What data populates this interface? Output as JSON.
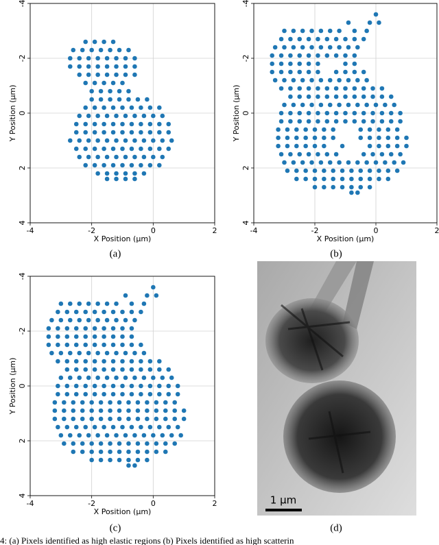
{
  "chart_data": [
    {
      "type": "scatter",
      "label": "(a)",
      "x_label": "X Position (µm)",
      "y_label": "Y Position (µm)",
      "xlim": [
        -4,
        2
      ],
      "ylim": [
        4,
        -4
      ],
      "xticks": [
        -4,
        -2,
        0,
        2
      ],
      "yticks": [
        -4,
        -2,
        0,
        2,
        4
      ],
      "grid": true,
      "color": "#1f77b4",
      "x": [
        -2.2,
        -1.9,
        -1.6,
        -1.3,
        -2.6,
        -2.3,
        -2.0,
        -1.7,
        -1.4,
        -1.1,
        -0.8,
        -2.7,
        -2.4,
        -2.1,
        -1.8,
        -1.5,
        -1.2,
        -0.9,
        -0.6,
        -2.7,
        -2.4,
        -2.1,
        -1.8,
        -1.5,
        -1.2,
        -0.9,
        -0.6,
        -2.4,
        -2.1,
        -1.8,
        -1.5,
        -1.2,
        -0.9,
        -0.6,
        -2.2,
        -1.9,
        -1.6,
        -1.3,
        -1.0,
        -2.0,
        -1.7,
        -1.4,
        -1.1,
        -0.8,
        -2.0,
        -1.7,
        -1.4,
        -1.1,
        -0.8,
        -0.5,
        -0.2,
        -2.2,
        -1.9,
        -1.6,
        -1.3,
        -1.0,
        -0.7,
        -0.4,
        -0.1,
        0.2,
        -2.4,
        -2.1,
        -1.8,
        -1.5,
        -1.2,
        -0.9,
        -0.6,
        -0.3,
        0,
        0.3,
        -2.5,
        -2.2,
        -1.9,
        -1.6,
        -1.3,
        -1.0,
        -0.7,
        -0.4,
        -0.1,
        0.2,
        0.5,
        -2.5,
        -2.2,
        -1.9,
        -1.6,
        -1.3,
        -1.0,
        -0.7,
        -0.4,
        -0.1,
        0.2,
        0.5,
        -2.7,
        -2.4,
        -2.1,
        -1.8,
        -1.5,
        -1.2,
        -0.9,
        -0.6,
        -0.3,
        0,
        0.3,
        0.6,
        -2.5,
        -2.2,
        -1.9,
        -1.6,
        -1.3,
        -1.0,
        -0.7,
        -0.4,
        -0.1,
        0.2,
        0.5,
        -2.4,
        -2.1,
        -1.8,
        -1.5,
        -1.2,
        -0.9,
        -0.6,
        -0.3,
        0,
        0.3,
        -2.2,
        -1.9,
        -1.6,
        -1.3,
        -1.0,
        -0.7,
        -0.4,
        -0.1,
        0.2,
        -1.8,
        -1.5,
        -1.2,
        -0.9,
        -0.6,
        -0.3,
        -1.5,
        -1.2,
        -0.9,
        -0.6
      ],
      "values": [
        -2.6,
        -2.6,
        -2.6,
        -2.6,
        -2.3,
        -2.3,
        -2.3,
        -2.3,
        -2.3,
        -2.3,
        -2.3,
        -2.0,
        -2.0,
        -2.0,
        -2.0,
        -2.0,
        -2.0,
        -2.0,
        -2.0,
        -1.7,
        -1.7,
        -1.7,
        -1.7,
        -1.7,
        -1.7,
        -1.7,
        -1.7,
        -1.4,
        -1.4,
        -1.4,
        -1.4,
        -1.4,
        -1.4,
        -1.4,
        -1.1,
        -1.1,
        -1.1,
        -1.1,
        -1.1,
        -0.8,
        -0.8,
        -0.8,
        -0.8,
        -0.8,
        -0.5,
        -0.5,
        -0.5,
        -0.5,
        -0.5,
        -0.5,
        -0.5,
        -0.2,
        -0.2,
        -0.2,
        -0.2,
        -0.2,
        -0.2,
        -0.2,
        -0.2,
        -0.2,
        0.1,
        0.1,
        0.1,
        0.1,
        0.1,
        0.1,
        0.1,
        0.1,
        0.1,
        0.1,
        0.4,
        0.4,
        0.4,
        0.4,
        0.4,
        0.4,
        0.4,
        0.4,
        0.4,
        0.4,
        0.4,
        0.7,
        0.7,
        0.7,
        0.7,
        0.7,
        0.7,
        0.7,
        0.7,
        0.7,
        0.7,
        0.7,
        1.0,
        1.0,
        1.0,
        1.0,
        1.0,
        1.0,
        1.0,
        1.0,
        1.0,
        1.0,
        1.0,
        1.0,
        1.3,
        1.3,
        1.3,
        1.3,
        1.3,
        1.3,
        1.3,
        1.3,
        1.3,
        1.3,
        1.3,
        1.6,
        1.6,
        1.6,
        1.6,
        1.6,
        1.6,
        1.6,
        1.6,
        1.6,
        1.6,
        1.9,
        1.9,
        1.9,
        1.9,
        1.9,
        1.9,
        1.9,
        1.9,
        1.9,
        2.2,
        2.2,
        2.2,
        2.2,
        2.2,
        2.2,
        2.4,
        2.4,
        2.4,
        2.4
      ]
    },
    {
      "type": "scatter",
      "label": "(b)",
      "x_label": "X Position (µm)",
      "y_label": "Y Position (µm)",
      "xlim": [
        -4,
        2
      ],
      "ylim": [
        4,
        -4
      ],
      "xticks": [
        -4,
        -2,
        0,
        2
      ],
      "yticks": [
        -4,
        -2,
        0,
        2,
        4
      ],
      "grid": true,
      "color": "#1f77b4",
      "x": [
        0,
        -0.9,
        -0.2,
        0.1,
        -3.0,
        -2.7,
        -2.4,
        -2.1,
        -1.8,
        -1.5,
        -1.2,
        -0.7,
        -0.3,
        -3.1,
        -2.8,
        -2.5,
        -2.2,
        -1.9,
        -1.6,
        -1.3,
        -1.0,
        -0.7,
        -0.4,
        -3.3,
        -3.0,
        -2.7,
        -2.4,
        -2.1,
        -1.8,
        -1.5,
        -1.2,
        -0.9,
        -0.6,
        -3.4,
        -3.1,
        -2.8,
        -2.5,
        -2.2,
        -1.9,
        -1.6,
        -1.3,
        -1.0,
        -0.7,
        -3.4,
        -3.1,
        -2.8,
        -2.5,
        -2.2,
        -1.9,
        -1.0,
        -0.7,
        -3.4,
        -3.1,
        -2.8,
        -2.5,
        -2.2,
        -1.9,
        -1.3,
        -1.0,
        -0.7,
        -0.4,
        -3.3,
        -3.0,
        -2.7,
        -2.4,
        -2.1,
        -1.8,
        -1.5,
        -1.2,
        -0.9,
        -0.6,
        -0.3,
        -3.1,
        -2.8,
        -2.5,
        -2.2,
        -1.9,
        -1.6,
        -1.3,
        -1.0,
        -0.7,
        -0.4,
        -0.1,
        0.2,
        -2.8,
        -2.5,
        -2.2,
        -1.9,
        -1.6,
        -1.3,
        -1.0,
        -0.7,
        -0.4,
        -0.1,
        0.2,
        0.5,
        -3.0,
        -2.7,
        -2.4,
        -2.1,
        -1.8,
        -1.5,
        -1.2,
        -0.9,
        -0.6,
        -0.3,
        0,
        0.3,
        0.6,
        -3.1,
        -2.8,
        -2.5,
        -2.2,
        -1.9,
        -1.6,
        -1.3,
        -1.0,
        -0.7,
        -0.4,
        -0.1,
        0.2,
        0.5,
        0.8,
        -3.1,
        -2.8,
        -2.5,
        -2.2,
        -1.9,
        -1.6,
        -1.3,
        -1.0,
        -0.7,
        -0.4,
        -0.1,
        0.2,
        0.5,
        0.8,
        -3.2,
        -2.9,
        -2.6,
        -2.3,
        -2.0,
        -1.7,
        -1.4,
        -0.5,
        -0.2,
        0.1,
        0.4,
        0.7,
        -3.2,
        -2.9,
        -2.6,
        -2.3,
        -2.0,
        -1.7,
        -1.4,
        -0.5,
        -0.2,
        0.1,
        0.4,
        0.7,
        1.0,
        -3.2,
        -2.9,
        -2.6,
        -2.3,
        -2.0,
        -1.7,
        -1.1,
        -0.2,
        0.1,
        0.4,
        0.7,
        1.0,
        -3.1,
        -2.8,
        -2.5,
        -2.2,
        -1.9,
        -1.6,
        -1.3,
        -0.4,
        -0.1,
        0.2,
        0.5,
        0.8,
        -3.0,
        -2.7,
        -2.4,
        -2.1,
        -1.8,
        -1.5,
        -1.2,
        -0.9,
        -0.6,
        -0.3,
        0,
        0.3,
        0.6,
        0.9,
        -2.9,
        -2.6,
        -2.3,
        -2.0,
        -1.7,
        -1.4,
        -1.1,
        -0.8,
        -0.5,
        -0.2,
        0.1,
        0.4,
        0.7,
        -2.6,
        -2.3,
        -2.0,
        -1.7,
        -1.4,
        -1.1,
        -0.8,
        -0.5,
        -0.2,
        0.1,
        0.4,
        -2.0,
        -1.7,
        -1.4,
        -1.1,
        -0.8,
        -0.5,
        -0.2,
        -0.8,
        -0.6
      ],
      "values": [
        -3.6,
        -3.3,
        -3.3,
        -3.3,
        -3.0,
        -3.0,
        -3.0,
        -3.0,
        -3.0,
        -3.0,
        -3.0,
        -3.0,
        -3.0,
        -2.7,
        -2.7,
        -2.7,
        -2.7,
        -2.7,
        -2.7,
        -2.7,
        -2.7,
        -2.7,
        -2.7,
        -2.4,
        -2.4,
        -2.4,
        -2.4,
        -2.4,
        -2.4,
        -2.4,
        -2.4,
        -2.4,
        -2.4,
        -2.1,
        -2.1,
        -2.1,
        -2.1,
        -2.1,
        -2.1,
        -2.1,
        -2.1,
        -2.1,
        -2.1,
        -1.8,
        -1.8,
        -1.8,
        -1.8,
        -1.8,
        -1.8,
        -1.8,
        -1.8,
        -1.5,
        -1.5,
        -1.5,
        -1.5,
        -1.5,
        -1.5,
        -1.5,
        -1.5,
        -1.5,
        -1.5,
        -1.2,
        -1.2,
        -1.2,
        -1.2,
        -1.2,
        -1.2,
        -1.2,
        -1.2,
        -1.2,
        -1.2,
        -1.2,
        -0.9,
        -0.9,
        -0.9,
        -0.9,
        -0.9,
        -0.9,
        -0.9,
        -0.9,
        -0.9,
        -0.9,
        -0.9,
        -0.9,
        -0.6,
        -0.6,
        -0.6,
        -0.6,
        -0.6,
        -0.6,
        -0.6,
        -0.6,
        -0.6,
        -0.6,
        -0.6,
        -0.6,
        -0.3,
        -0.3,
        -0.3,
        -0.3,
        -0.3,
        -0.3,
        -0.3,
        -0.3,
        -0.3,
        -0.3,
        -0.3,
        -0.3,
        -0.3,
        0,
        0,
        0,
        0,
        0,
        0,
        0,
        0,
        0,
        0,
        0,
        0,
        0,
        0,
        0.3,
        0.3,
        0.3,
        0.3,
        0.3,
        0.3,
        0.3,
        0.3,
        0.3,
        0.3,
        0.3,
        0.3,
        0.3,
        0.3,
        0.6,
        0.6,
        0.6,
        0.6,
        0.6,
        0.6,
        0.6,
        0.6,
        0.6,
        0.6,
        0.6,
        0.6,
        0.9,
        0.9,
        0.9,
        0.9,
        0.9,
        0.9,
        0.9,
        0.9,
        0.9,
        0.9,
        0.9,
        0.9,
        0.9,
        1.2,
        1.2,
        1.2,
        1.2,
        1.2,
        1.2,
        1.2,
        1.2,
        1.2,
        1.2,
        1.2,
        1.2,
        1.5,
        1.5,
        1.5,
        1.5,
        1.5,
        1.5,
        1.5,
        1.5,
        1.5,
        1.5,
        1.5,
        1.5,
        1.8,
        1.8,
        1.8,
        1.8,
        1.8,
        1.8,
        1.8,
        1.8,
        1.8,
        1.8,
        1.8,
        1.8,
        1.8,
        1.8,
        2.1,
        2.1,
        2.1,
        2.1,
        2.1,
        2.1,
        2.1,
        2.1,
        2.1,
        2.1,
        2.1,
        2.1,
        2.1,
        2.4,
        2.4,
        2.4,
        2.4,
        2.4,
        2.4,
        2.4,
        2.4,
        2.4,
        2.4,
        2.4,
        2.7,
        2.7,
        2.7,
        2.7,
        2.7,
        2.7,
        2.7,
        2.9,
        2.9
      ]
    },
    {
      "type": "scatter",
      "label": "(c)",
      "x_label": "X Position (µm)",
      "y_label": "Y Position (µm)",
      "xlim": [
        -4,
        2
      ],
      "ylim": [
        4,
        -4
      ],
      "xticks": [
        -4,
        -2,
        0,
        2
      ],
      "yticks": [
        -4,
        -2,
        0,
        2,
        4
      ],
      "grid": true,
      "color": "#1f77b4",
      "x": [
        0,
        -0.9,
        -0.2,
        0.1,
        -3.0,
        -2.7,
        -2.4,
        -2.1,
        -1.8,
        -1.5,
        -1.2,
        -0.7,
        -0.3,
        -3.1,
        -2.8,
        -2.5,
        -2.2,
        -1.9,
        -1.6,
        -1.3,
        -1.0,
        -0.7,
        -0.4,
        -3.3,
        -3.0,
        -2.7,
        -2.4,
        -2.1,
        -1.8,
        -1.5,
        -1.2,
        -0.9,
        -0.6,
        -3.4,
        -3.1,
        -2.8,
        -2.5,
        -2.2,
        -1.9,
        -1.6,
        -1.3,
        -1.0,
        -0.7,
        -3.4,
        -3.1,
        -2.8,
        -2.5,
        -2.2,
        -1.9,
        -1.6,
        -1.3,
        -1.0,
        -0.7,
        -3.4,
        -3.1,
        -2.8,
        -2.5,
        -2.2,
        -1.9,
        -1.6,
        -1.3,
        -1.0,
        -0.7,
        -0.4,
        -3.3,
        -3.0,
        -2.7,
        -2.4,
        -2.1,
        -1.8,
        -1.5,
        -1.2,
        -0.9,
        -0.6,
        -0.3,
        -3.1,
        -2.8,
        -2.5,
        -2.2,
        -1.9,
        -1.6,
        -1.3,
        -1.0,
        -0.7,
        -0.4,
        -0.1,
        0.2,
        -2.8,
        -2.5,
        -2.2,
        -1.9,
        -1.6,
        -1.3,
        -1.0,
        -0.7,
        -0.4,
        -0.1,
        0.2,
        0.5,
        -3.0,
        -2.7,
        -2.4,
        -2.1,
        -1.8,
        -1.5,
        -1.2,
        -0.9,
        -0.6,
        -0.3,
        0,
        0.3,
        0.6,
        -3.1,
        -2.8,
        -2.5,
        -2.2,
        -1.9,
        -1.6,
        -1.3,
        -1.0,
        -0.7,
        -0.4,
        -0.1,
        0.2,
        0.5,
        0.8,
        -3.1,
        -2.8,
        -2.5,
        -2.2,
        -1.9,
        -1.6,
        -1.3,
        -1.0,
        -0.7,
        -0.4,
        -0.1,
        0.2,
        0.5,
        0.8,
        -3.2,
        -2.9,
        -2.6,
        -2.3,
        -2.0,
        -1.7,
        -1.4,
        -1.1,
        -0.8,
        -0.5,
        -0.2,
        0.1,
        0.4,
        0.7,
        -3.2,
        -2.9,
        -2.6,
        -2.3,
        -2.0,
        -1.7,
        -1.4,
        -1.1,
        -0.8,
        -0.5,
        -0.2,
        0.1,
        0.4,
        0.7,
        1.0,
        -3.2,
        -2.9,
        -2.6,
        -2.3,
        -2.0,
        -1.7,
        -1.4,
        -1.1,
        -0.8,
        -0.5,
        -0.2,
        0.1,
        0.4,
        0.7,
        1.0,
        -3.1,
        -2.8,
        -2.5,
        -2.2,
        -1.9,
        -1.6,
        -1.3,
        -1.0,
        -0.7,
        -0.4,
        -0.1,
        0.2,
        0.5,
        0.8,
        -3.0,
        -2.7,
        -2.4,
        -2.1,
        -1.8,
        -1.5,
        -1.2,
        -0.9,
        -0.6,
        -0.3,
        0,
        0.3,
        0.6,
        0.9,
        -2.9,
        -2.6,
        -2.3,
        -2.0,
        -1.7,
        -1.4,
        -1.1,
        -0.8,
        -0.5,
        -0.2,
        0.1,
        0.4,
        0.7,
        -2.6,
        -2.3,
        -2.0,
        -1.7,
        -1.4,
        -1.1,
        -0.8,
        -0.5,
        -0.2,
        0.1,
        0.4,
        -2.0,
        -1.7,
        -1.4,
        -1.1,
        -0.8,
        -0.5,
        -0.2,
        -0.8,
        -0.6
      ],
      "values": [
        -3.6,
        -3.3,
        -3.3,
        -3.3,
        -3.0,
        -3.0,
        -3.0,
        -3.0,
        -3.0,
        -3.0,
        -3.0,
        -3.0,
        -3.0,
        -2.7,
        -2.7,
        -2.7,
        -2.7,
        -2.7,
        -2.7,
        -2.7,
        -2.7,
        -2.7,
        -2.7,
        -2.4,
        -2.4,
        -2.4,
        -2.4,
        -2.4,
        -2.4,
        -2.4,
        -2.4,
        -2.4,
        -2.4,
        -2.1,
        -2.1,
        -2.1,
        -2.1,
        -2.1,
        -2.1,
        -2.1,
        -2.1,
        -2.1,
        -2.1,
        -1.8,
        -1.8,
        -1.8,
        -1.8,
        -1.8,
        -1.8,
        -1.8,
        -1.8,
        -1.8,
        -1.8,
        -1.5,
        -1.5,
        -1.5,
        -1.5,
        -1.5,
        -1.5,
        -1.5,
        -1.5,
        -1.5,
        -1.5,
        -1.5,
        -1.2,
        -1.2,
        -1.2,
        -1.2,
        -1.2,
        -1.2,
        -1.2,
        -1.2,
        -1.2,
        -1.2,
        -1.2,
        -0.9,
        -0.9,
        -0.9,
        -0.9,
        -0.9,
        -0.9,
        -0.9,
        -0.9,
        -0.9,
        -0.9,
        -0.9,
        -0.9,
        -0.6,
        -0.6,
        -0.6,
        -0.6,
        -0.6,
        -0.6,
        -0.6,
        -0.6,
        -0.6,
        -0.6,
        -0.6,
        -0.6,
        -0.3,
        -0.3,
        -0.3,
        -0.3,
        -0.3,
        -0.3,
        -0.3,
        -0.3,
        -0.3,
        -0.3,
        -0.3,
        -0.3,
        -0.3,
        0,
        0,
        0,
        0,
        0,
        0,
        0,
        0,
        0,
        0,
        0,
        0,
        0,
        0,
        0.3,
        0.3,
        0.3,
        0.3,
        0.3,
        0.3,
        0.3,
        0.3,
        0.3,
        0.3,
        0.3,
        0.3,
        0.3,
        0.3,
        0.6,
        0.6,
        0.6,
        0.6,
        0.6,
        0.6,
        0.6,
        0.6,
        0.6,
        0.6,
        0.6,
        0.6,
        0.6,
        0.6,
        0.9,
        0.9,
        0.9,
        0.9,
        0.9,
        0.9,
        0.9,
        0.9,
        0.9,
        0.9,
        0.9,
        0.9,
        0.9,
        0.9,
        0.9,
        1.2,
        1.2,
        1.2,
        1.2,
        1.2,
        1.2,
        1.2,
        1.2,
        1.2,
        1.2,
        1.2,
        1.2,
        1.2,
        1.2,
        1.2,
        1.5,
        1.5,
        1.5,
        1.5,
        1.5,
        1.5,
        1.5,
        1.5,
        1.5,
        1.5,
        1.5,
        1.5,
        1.5,
        1.5,
        1.8,
        1.8,
        1.8,
        1.8,
        1.8,
        1.8,
        1.8,
        1.8,
        1.8,
        1.8,
        1.8,
        1.8,
        1.8,
        1.8,
        2.1,
        2.1,
        2.1,
        2.1,
        2.1,
        2.1,
        2.1,
        2.1,
        2.1,
        2.1,
        2.1,
        2.1,
        2.1,
        2.4,
        2.4,
        2.4,
        2.4,
        2.4,
        2.4,
        2.4,
        2.4,
        2.4,
        2.4,
        2.4,
        2.7,
        2.7,
        2.7,
        2.7,
        2.7,
        2.7,
        2.7,
        2.9,
        2.9
      ]
    }
  ],
  "micrograph": {
    "label": "(d)",
    "scale_bar": "1 µm"
  },
  "caption": "4: (a) Pixels identified as high elastic regions (b) Pixels identified as high scatterin"
}
